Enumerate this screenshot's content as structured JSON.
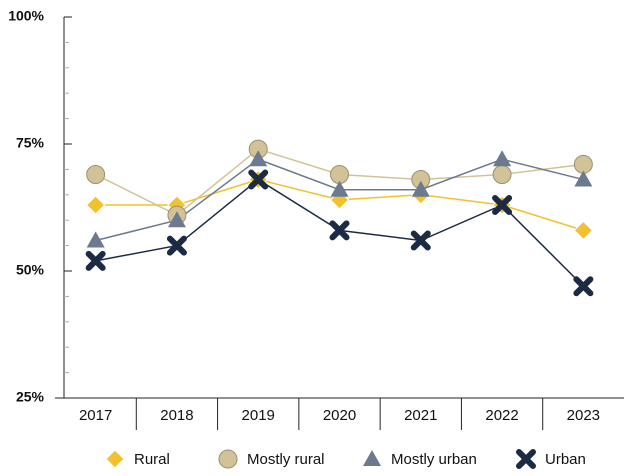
{
  "chart_data": {
    "type": "line",
    "categories": [
      "2017",
      "2018",
      "2019",
      "2020",
      "2021",
      "2022",
      "2023"
    ],
    "series": [
      {
        "name": "Rural",
        "color": "#f2c12e",
        "marker": "diamond",
        "values": [
          63,
          63,
          68,
          64,
          65,
          63,
          58
        ]
      },
      {
        "name": "Mostly rural",
        "color": "#d2c297",
        "marker": "circle",
        "values": [
          69,
          61,
          74,
          69,
          68,
          69,
          71
        ]
      },
      {
        "name": "Mostly urban",
        "color": "#6b7a8f",
        "marker": "triangle",
        "values": [
          56,
          60,
          72,
          66,
          66,
          72,
          68
        ]
      },
      {
        "name": "Urban",
        "color": "#1b2b44",
        "marker": "cross",
        "values": [
          52,
          55,
          68,
          58,
          56,
          63,
          47
        ]
      }
    ],
    "ylim": [
      25,
      100
    ],
    "yticks": [
      {
        "value": 25,
        "label": "25%"
      },
      {
        "value": 50,
        "label": "50%"
      },
      {
        "value": 75,
        "label": "75%"
      },
      {
        "value": 100,
        "label": "100%"
      }
    ],
    "yminorticks": [
      30,
      35,
      40,
      45,
      55,
      60,
      65,
      70,
      80,
      85,
      90,
      95
    ],
    "legend": "bottom",
    "grid": false
  }
}
